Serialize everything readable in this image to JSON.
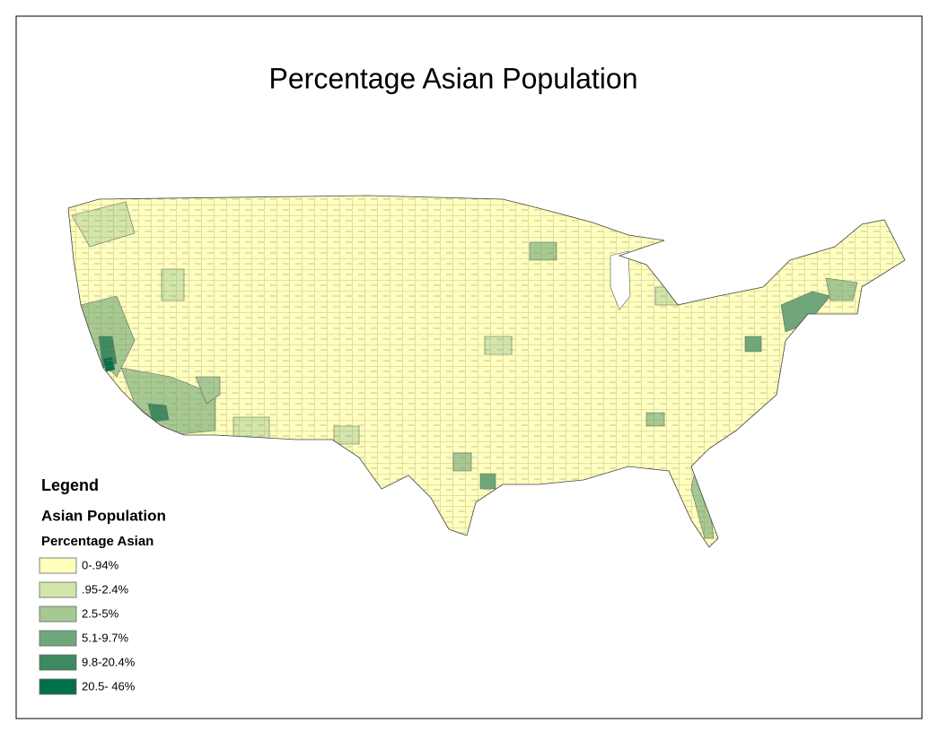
{
  "title": "Percentage Asian Population",
  "legend": {
    "title": "Legend",
    "layer": "Asian Population",
    "field": "Percentage Asian",
    "classes": [
      {
        "label": "0-.94%",
        "color": "#ffffbe"
      },
      {
        "label": ".95-2.4%",
        "color": "#d3e6a9"
      },
      {
        "label": "2.5-5%",
        "color": "#a5c991"
      },
      {
        "label": "5.1-9.7%",
        "color": "#6ea87a"
      },
      {
        "label": "9.8-20.4%",
        "color": "#3d8a60"
      },
      {
        "label": "20.5- 46%",
        "color": "#00704a"
      }
    ]
  }
}
